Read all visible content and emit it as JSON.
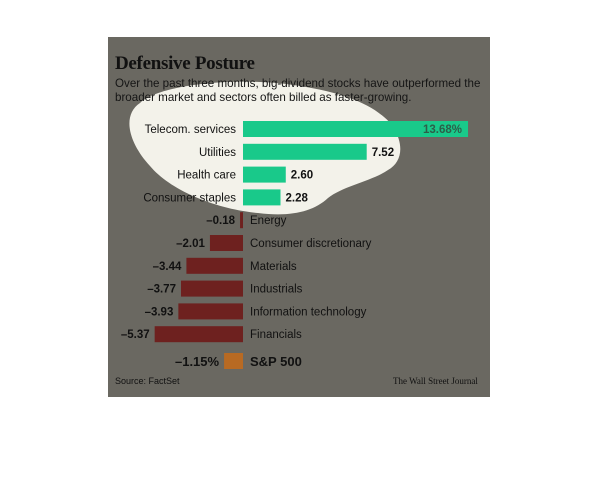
{
  "title": "Defensive Posture",
  "subtitle": "Over the past three months, big-dividend stocks have outperformed the broader market and sectors often billed as faster-growing.",
  "source": "Source: FactSet",
  "credit": "The Wall Street Journal",
  "colors": {
    "panel": "#6a6861",
    "positive": "#19c98a",
    "negative": "#6e211f",
    "benchmark": "#b86a23",
    "highlight": "#f3f2ea"
  },
  "chart_data": {
    "type": "bar",
    "orientation": "horizontal",
    "unit": "%",
    "categories": [
      "Telecom. services",
      "Utilities",
      "Health care",
      "Consumer staples",
      "Energy",
      "Consumer discretionary",
      "Materials",
      "Industrials",
      "Information technology",
      "Financials"
    ],
    "values": [
      13.68,
      7.52,
      2.6,
      2.28,
      -0.18,
      -2.01,
      -3.44,
      -3.77,
      -3.93,
      -5.37
    ],
    "labels": [
      "13.68%",
      "7.52",
      "2.60",
      "2.28",
      "–0.18",
      "–2.01",
      "–3.44",
      "–3.77",
      "–3.93",
      "–5.37"
    ],
    "benchmark": {
      "name": "S&P 500",
      "value": -1.15,
      "label": "–1.15%"
    },
    "annotation": "hand-drawn highlight around the four best-performing sectors",
    "grid": false
  }
}
